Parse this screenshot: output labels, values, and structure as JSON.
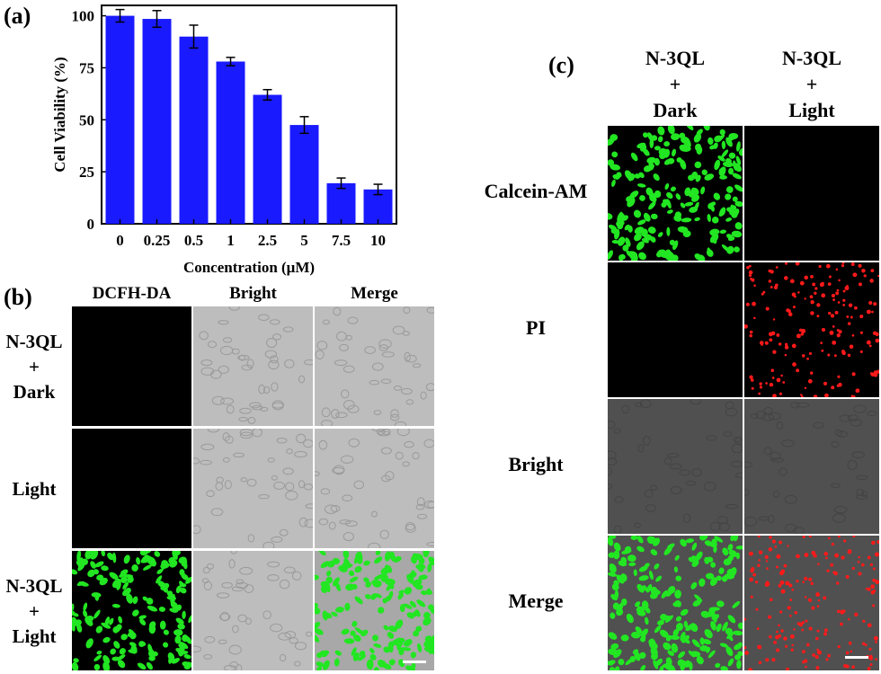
{
  "panel_labels": {
    "a": "(a)",
    "b": "(b)",
    "c": "(c)"
  },
  "chart_data": {
    "type": "bar",
    "categories": [
      "0",
      "0.25",
      "0.5",
      "1",
      "2.5",
      "5",
      "7.5",
      "10"
    ],
    "values": [
      100,
      98.5,
      90,
      78,
      62,
      47.5,
      19.5,
      16.5
    ],
    "errors": [
      3,
      4,
      5.5,
      2,
      2.5,
      4,
      2.5,
      2.5
    ],
    "ylabel": "Cell Viability (%)",
    "xlabel": "Concentration (μM)",
    "ylim": [
      0,
      105
    ],
    "yticks": [
      0,
      25,
      50,
      75,
      100
    ],
    "bar_color": "#1a1aff",
    "grid": false
  },
  "panel_b": {
    "columns": [
      "DCFH-DA",
      "Bright",
      "Merge"
    ],
    "rows": [
      {
        "lines": [
          "N-3QL",
          "+",
          "Dark"
        ]
      },
      {
        "lines": [
          "Light"
        ]
      },
      {
        "lines": [
          "N-3QL",
          "+",
          "Light"
        ]
      }
    ],
    "tiles": [
      [
        "black",
        "bright",
        "bright"
      ],
      [
        "black",
        "bright",
        "bright"
      ],
      [
        "green",
        "bright",
        "green-merge"
      ]
    ]
  },
  "panel_c": {
    "columns": [
      {
        "lines": [
          "N-3QL",
          "+",
          "Dark"
        ]
      },
      {
        "lines": [
          "N-3QL",
          "+",
          "Light"
        ]
      }
    ],
    "rows": [
      "Calcein-AM",
      "PI",
      "Bright",
      "Merge"
    ],
    "tiles": [
      [
        "green",
        "black"
      ],
      [
        "black",
        "red"
      ],
      [
        "dark-bright",
        "dark-bright"
      ],
      [
        "green-merge-dark",
        "red-merge"
      ]
    ]
  },
  "colors": {
    "fluor_green": "#22e622",
    "fluor_red": "#ff1a1a",
    "bright_bg": "#bdbdbd",
    "dark_bright_bg": "#505050",
    "bar": "#1a1aff"
  }
}
